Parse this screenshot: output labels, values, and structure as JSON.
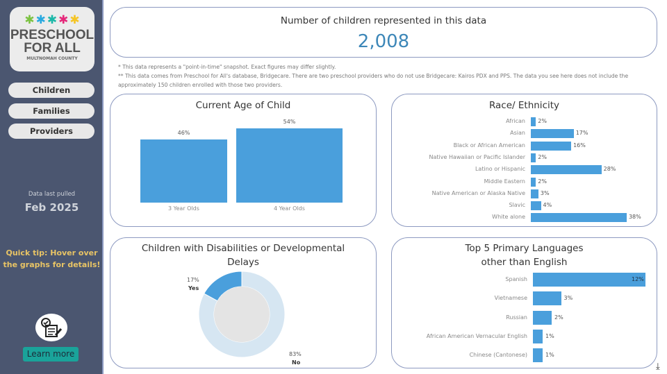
{
  "sidebar": {
    "logo": {
      "line1": "PRESCHOOL",
      "line2": "FOR ALL",
      "line3": "MULTNOMAH COUNTY"
    },
    "nav": [
      {
        "label": "Children"
      },
      {
        "label": "Families"
      },
      {
        "label": "Providers"
      }
    ],
    "data_pulled_label": "Data last pulled",
    "data_pulled_date": "Feb 2025",
    "tip": "Quick tip: Hover over the graphs for details!",
    "learn_more": "Learn more"
  },
  "summary": {
    "title": "Number of children represented in this data",
    "value": "2,008"
  },
  "notes": {
    "n1": "* This data represents a \"point-in-time\" snapshot. Exact figures may differ slightly.",
    "n2": "** This data comes from Preschool for All's database, Bridgecare. There are two preschool providers who do not use Bridgecare: Kairos PDX and PPS. The data you see here does not include the approximately 150 children enrolled with those two providers."
  },
  "colors": {
    "bar": "#4a9fdc",
    "donut_light": "#d6e6f2",
    "donut_dark": "#4a9fdc",
    "border": "#8c99c0",
    "sidebar": "#4b5670"
  },
  "chart_data": [
    {
      "type": "bar",
      "title": "Current Age of Child",
      "categories": [
        "3 Year Olds",
        "4 Year Olds"
      ],
      "values": [
        46,
        54
      ],
      "labels": [
        "46%",
        "54%"
      ]
    },
    {
      "type": "bar",
      "orientation": "horizontal",
      "title": "Race/ Ethnicity",
      "categories": [
        "African",
        "Asian",
        "Black or African American",
        "Native Hawaiian or Pacific Islander",
        "Latino or Hispanic",
        "Middle Eastern",
        "Native American or Alaska Native",
        "Slavic",
        "White alone"
      ],
      "values": [
        2,
        17,
        16,
        2,
        28,
        2,
        3,
        4,
        38
      ],
      "labels": [
        "2%",
        "17%",
        "16%",
        "2%",
        "28%",
        "2%",
        "3%",
        "4%",
        "38%"
      ]
    },
    {
      "type": "pie",
      "title": "Children with Disabilities or Developmental Delays",
      "categories": [
        "Yes",
        "No"
      ],
      "values": [
        17,
        83
      ],
      "labels": [
        "17%",
        "83%"
      ]
    },
    {
      "type": "bar",
      "orientation": "horizontal",
      "title": "Top 5 Primary Languages other than English",
      "categories": [
        "Spanish",
        "Vietnamese",
        "Russian",
        "African American Vernacular English",
        "Chinese (Cantonese)"
      ],
      "values": [
        12,
        3,
        2,
        1,
        1
      ],
      "labels": [
        "12%",
        "3%",
        "2%",
        "1%",
        "1%"
      ]
    }
  ]
}
